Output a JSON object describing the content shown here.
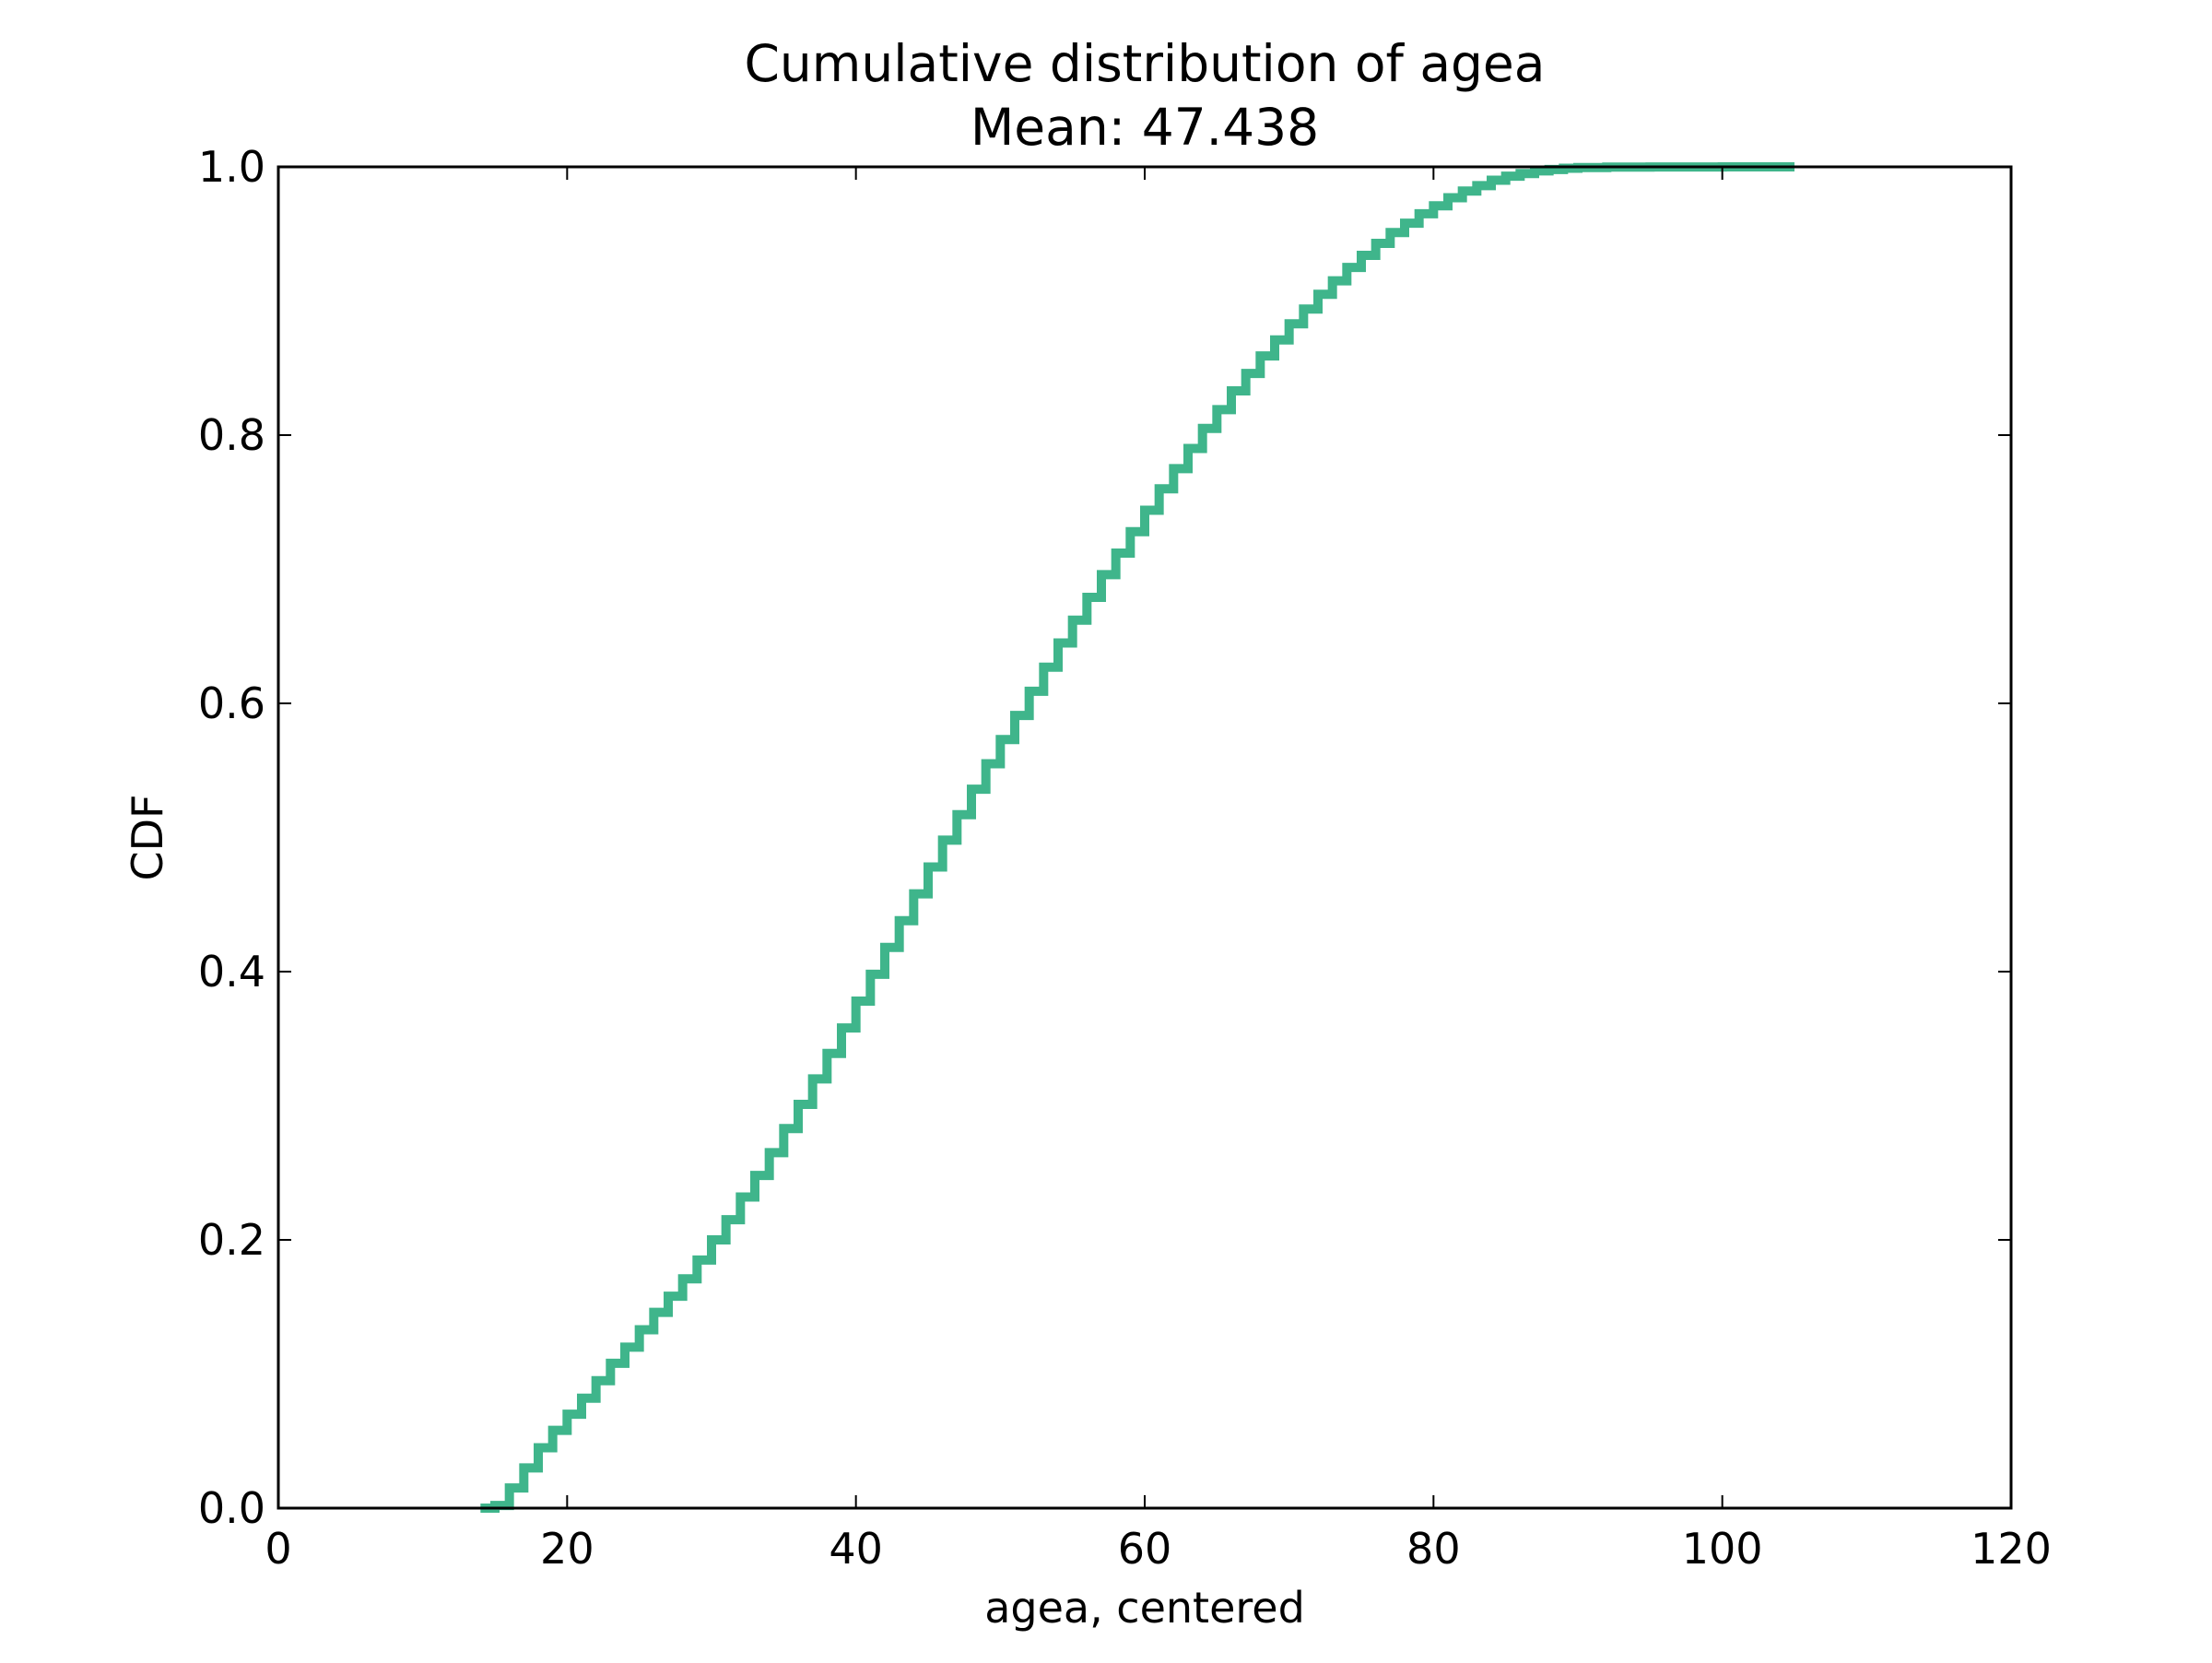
{
  "chart_data": {
    "type": "line",
    "title": "Cumulative distribution of agea",
    "subtitle": "Mean: 47.438",
    "xlabel": "agea, centered",
    "ylabel": "CDF",
    "xlim": [
      0,
      120
    ],
    "ylim": [
      0.0,
      1.0
    ],
    "x_ticks": [
      "0",
      "20",
      "40",
      "60",
      "80",
      "100",
      "120"
    ],
    "y_ticks": [
      "0.0",
      "0.2",
      "0.4",
      "0.6",
      "0.8",
      "1.0"
    ],
    "grid": false,
    "legend": "none",
    "line_style": "steps",
    "series": [
      {
        "color": "#3fb58b",
        "x": [
          14,
          15,
          16,
          17,
          18,
          19,
          20,
          21,
          22,
          23,
          24,
          25,
          26,
          27,
          28,
          29,
          30,
          31,
          32,
          33,
          34,
          35,
          36,
          37,
          38,
          39,
          40,
          41,
          42,
          43,
          44,
          45,
          46,
          47,
          48,
          49,
          50,
          51,
          52,
          53,
          54,
          55,
          56,
          57,
          58,
          59,
          60,
          61,
          62,
          63,
          64,
          65,
          66,
          67,
          68,
          69,
          70,
          71,
          72,
          73,
          74,
          75,
          76,
          77,
          78,
          79,
          80,
          81,
          82,
          83,
          84,
          85,
          86,
          87,
          88,
          89,
          90,
          92,
          95,
          100,
          105
        ],
        "y": [
          0.0,
          0.002,
          0.015,
          0.03,
          0.045,
          0.058,
          0.07,
          0.082,
          0.095,
          0.108,
          0.12,
          0.133,
          0.146,
          0.158,
          0.171,
          0.185,
          0.2,
          0.215,
          0.232,
          0.248,
          0.265,
          0.283,
          0.301,
          0.32,
          0.339,
          0.358,
          0.378,
          0.398,
          0.418,
          0.438,
          0.458,
          0.478,
          0.498,
          0.517,
          0.536,
          0.555,
          0.573,
          0.591,
          0.609,
          0.627,
          0.645,
          0.662,
          0.679,
          0.696,
          0.712,
          0.728,
          0.744,
          0.76,
          0.775,
          0.79,
          0.805,
          0.819,
          0.833,
          0.846,
          0.859,
          0.871,
          0.883,
          0.894,
          0.905,
          0.915,
          0.925,
          0.934,
          0.943,
          0.951,
          0.958,
          0.965,
          0.971,
          0.977,
          0.982,
          0.986,
          0.99,
          0.993,
          0.995,
          0.997,
          0.998,
          0.999,
          0.9995,
          0.9998,
          0.9999,
          1.0,
          1.0
        ]
      }
    ]
  }
}
